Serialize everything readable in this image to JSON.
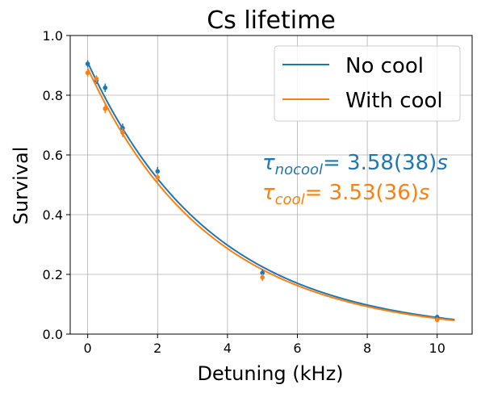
{
  "chart_data": {
    "type": "scatter",
    "title": "Cs lifetime",
    "xlabel": "Detuning (kHz)",
    "ylabel": "Survival",
    "xlim": [
      -0.5,
      11.0
    ],
    "ylim": [
      0.0,
      1.0
    ],
    "xticks": [
      0,
      2,
      4,
      6,
      8,
      10
    ],
    "yticks": [
      0.0,
      0.2,
      0.4,
      0.6,
      0.8,
      1.0
    ],
    "xtick_labels": [
      "0",
      "2",
      "4",
      "6",
      "8",
      "10"
    ],
    "ytick_labels": [
      "0.0",
      "0.2",
      "0.4",
      "0.6",
      "0.8",
      "1.0"
    ],
    "grid": true,
    "legend_position": "top-right",
    "series": [
      {
        "name": "No cool",
        "color": "#1f77b4",
        "points": [
          {
            "x": 0.0,
            "y": 0.905,
            "err": 0.012
          },
          {
            "x": 0.25,
            "y": 0.85,
            "err": 0.012
          },
          {
            "x": 0.5,
            "y": 0.825,
            "err": 0.014
          },
          {
            "x": 1.0,
            "y": 0.69,
            "err": 0.015
          },
          {
            "x": 2.0,
            "y": 0.545,
            "err": 0.015
          },
          {
            "x": 5.0,
            "y": 0.205,
            "err": 0.012
          },
          {
            "x": 10.0,
            "y": 0.057,
            "err": 0.008
          }
        ],
        "fit": {
          "amplitude": 0.91,
          "tau": 3.58
        }
      },
      {
        "name": "With cool",
        "color": "#ff7f0e",
        "points": [
          {
            "x": 0.0,
            "y": 0.875,
            "err": 0.012
          },
          {
            "x": 0.25,
            "y": 0.855,
            "err": 0.012
          },
          {
            "x": 0.5,
            "y": 0.755,
            "err": 0.015
          },
          {
            "x": 1.0,
            "y": 0.675,
            "err": 0.015
          },
          {
            "x": 2.0,
            "y": 0.525,
            "err": 0.015
          },
          {
            "x": 5.0,
            "y": 0.19,
            "err": 0.012
          },
          {
            "x": 10.0,
            "y": 0.048,
            "err": 0.008
          }
        ],
        "fit": {
          "amplitude": 0.89,
          "tau": 3.53
        }
      }
    ],
    "fit_x_range": [
      0.0,
      10.5
    ],
    "annotations": [
      {
        "symbol": "τ",
        "subscript": "nocool",
        "value": "= 3.58(38)",
        "unit": "s",
        "color": "#1f77b4"
      },
      {
        "symbol": "τ",
        "subscript": "cool",
        "value": "= 3.53(36)",
        "unit": "s",
        "color": "#ff7f0e"
      }
    ]
  }
}
